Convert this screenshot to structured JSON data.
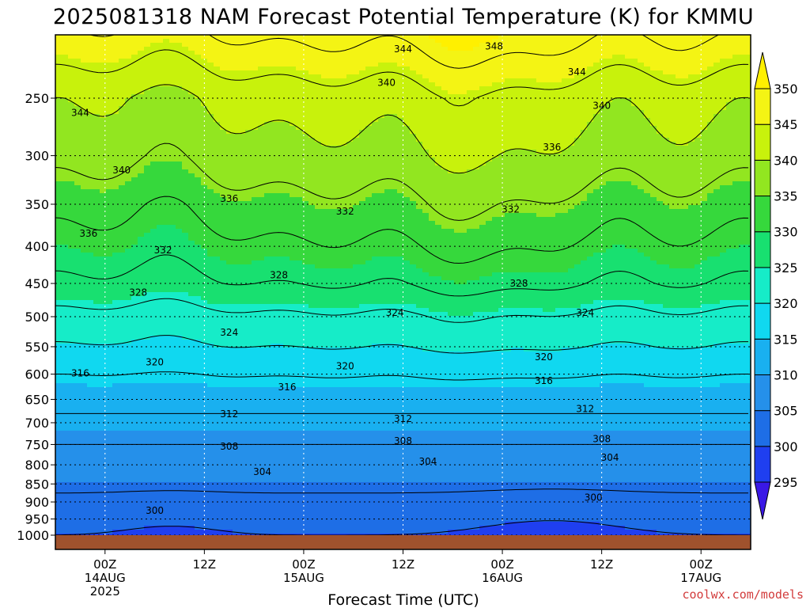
{
  "chart_data": {
    "type": "heatmap",
    "title": "2025081318 NAM Forecast Potential Temperature (K) for KMMU",
    "xlabel": "Forecast Time (UTC)",
    "ylabel": "",
    "credit": "coolwx.com/models",
    "y_ticks": [
      250,
      300,
      350,
      400,
      450,
      500,
      550,
      600,
      650,
      700,
      750,
      800,
      850,
      900,
      950,
      1000
    ],
    "ylim": [
      1000,
      200
    ],
    "x_ticks": [
      {
        "hour": 6,
        "line1": "00Z",
        "line2": "14AUG",
        "line3": "2025"
      },
      {
        "hour": 18,
        "line1": "12Z",
        "line2": "",
        "line3": ""
      },
      {
        "hour": 30,
        "line1": "00Z",
        "line2": "15AUG",
        "line3": ""
      },
      {
        "hour": 42,
        "line1": "12Z",
        "line2": "",
        "line3": ""
      },
      {
        "hour": 54,
        "line1": "00Z",
        "line2": "16AUG",
        "line3": ""
      },
      {
        "hour": 66,
        "line1": "12Z",
        "line2": "",
        "line3": ""
      },
      {
        "hour": 78,
        "line1": "00Z",
        "line2": "17AUG",
        "line3": ""
      }
    ],
    "xlim": [
      0,
      84
    ],
    "colorbar": {
      "levels": [
        295,
        300,
        305,
        310,
        315,
        320,
        325,
        330,
        335,
        340,
        345,
        350
      ],
      "colors": [
        "#3a18e6",
        "#1f3ff0",
        "#1e6ee6",
        "#2590ea",
        "#19b0f0",
        "#10d8f0",
        "#16ecc8",
        "#18e070",
        "#36d83c",
        "#92e620",
        "#c8f20c",
        "#f4f414",
        "#fff000"
      ]
    },
    "contour_labels": [
      {
        "x": 3,
        "p": 262,
        "value": "344"
      },
      {
        "x": 42,
        "p": 214,
        "value": "344"
      },
      {
        "x": 53,
        "p": 212,
        "value": "348"
      },
      {
        "x": 63,
        "p": 230,
        "value": "344"
      },
      {
        "x": 40,
        "p": 238,
        "value": "340"
      },
      {
        "x": 66,
        "p": 256,
        "value": "340"
      },
      {
        "x": 8,
        "p": 314,
        "value": "340"
      },
      {
        "x": 60,
        "p": 292,
        "value": "336"
      },
      {
        "x": 21,
        "p": 344,
        "value": "336"
      },
      {
        "x": 4,
        "p": 384,
        "value": "336"
      },
      {
        "x": 35,
        "p": 358,
        "value": "332"
      },
      {
        "x": 55,
        "p": 356,
        "value": "332"
      },
      {
        "x": 13,
        "p": 405,
        "value": "332"
      },
      {
        "x": 27,
        "p": 438,
        "value": "328"
      },
      {
        "x": 56,
        "p": 450,
        "value": "328"
      },
      {
        "x": 10,
        "p": 463,
        "value": "328"
      },
      {
        "x": 41,
        "p": 494,
        "value": "324"
      },
      {
        "x": 64,
        "p": 494,
        "value": "324"
      },
      {
        "x": 21,
        "p": 526,
        "value": "324"
      },
      {
        "x": 59,
        "p": 568,
        "value": "320"
      },
      {
        "x": 35,
        "p": 585,
        "value": "320"
      },
      {
        "x": 12,
        "p": 578,
        "value": "320"
      },
      {
        "x": 3,
        "p": 598,
        "value": "316"
      },
      {
        "x": 28,
        "p": 625,
        "value": "316"
      },
      {
        "x": 59,
        "p": 613,
        "value": "316"
      },
      {
        "x": 21,
        "p": 681,
        "value": "312"
      },
      {
        "x": 42,
        "p": 691,
        "value": "312"
      },
      {
        "x": 64,
        "p": 670,
        "value": "312"
      },
      {
        "x": 21,
        "p": 755,
        "value": "308"
      },
      {
        "x": 42,
        "p": 742,
        "value": "308"
      },
      {
        "x": 66,
        "p": 737,
        "value": "308"
      },
      {
        "x": 25,
        "p": 818,
        "value": "304"
      },
      {
        "x": 45,
        "p": 792,
        "value": "304"
      },
      {
        "x": 67,
        "p": 782,
        "value": "304"
      },
      {
        "x": 12,
        "p": 925,
        "value": "300"
      },
      {
        "x": 65,
        "p": 888,
        "value": "300"
      }
    ]
  }
}
